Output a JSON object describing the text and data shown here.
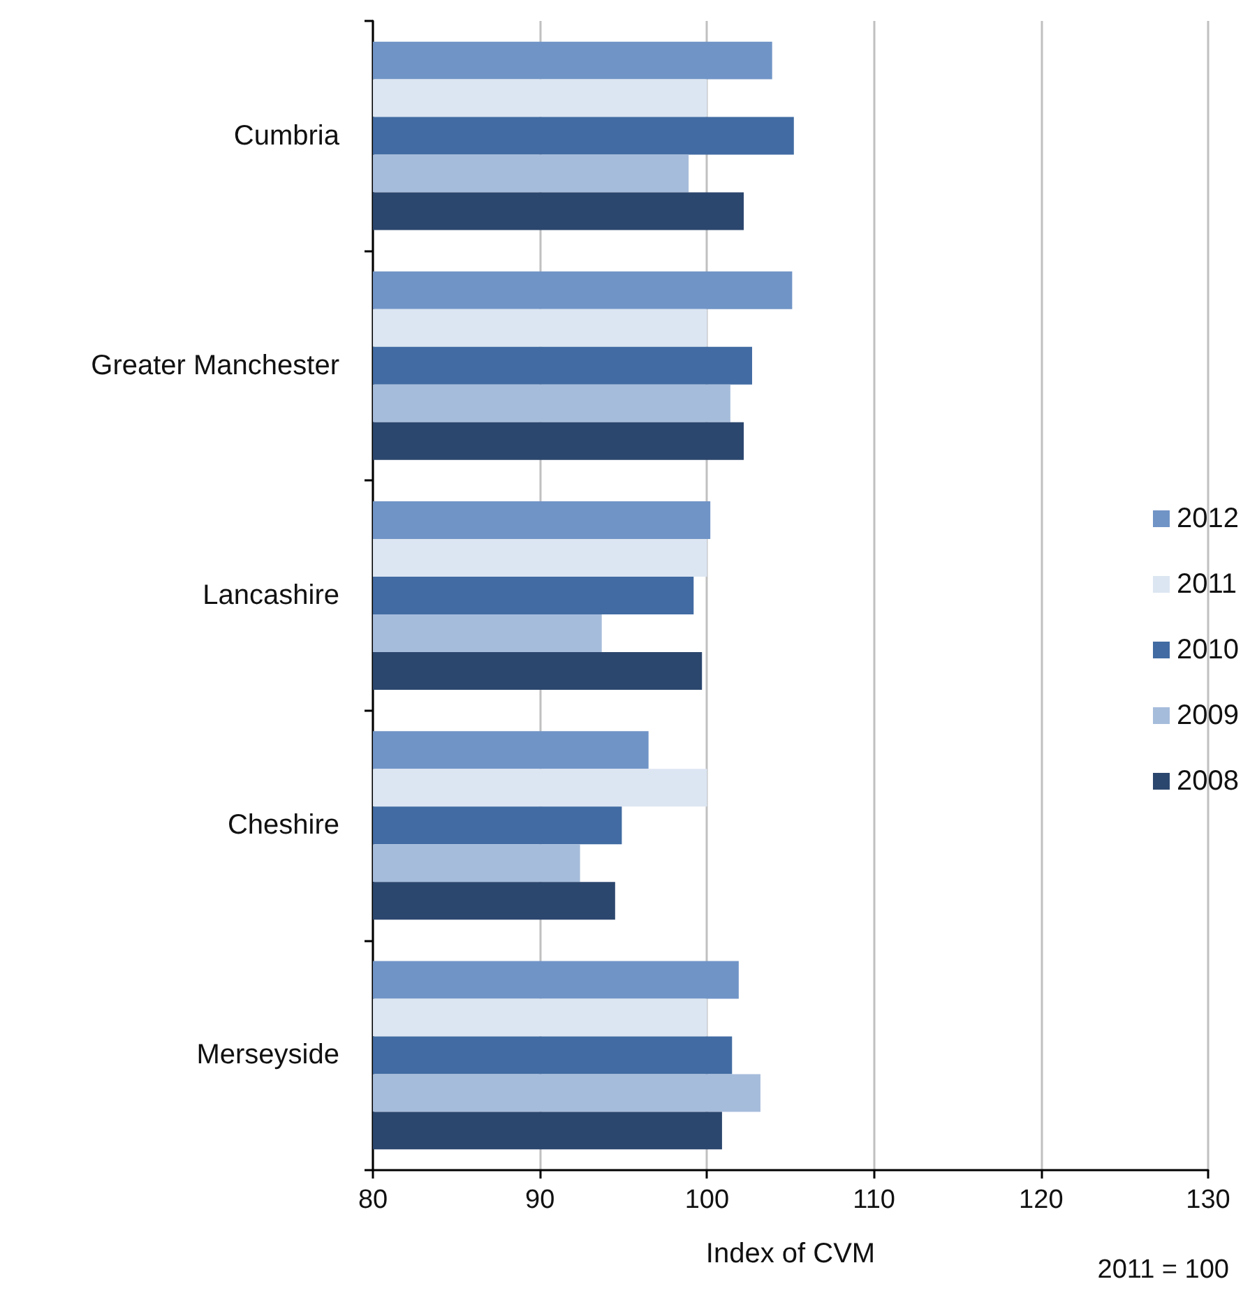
{
  "chart_data": {
    "type": "bar",
    "orientation": "horizontal",
    "categories": [
      "Cumbria",
      "Greater Manchester",
      "Lancashire",
      "Cheshire",
      "Merseyside"
    ],
    "series": [
      {
        "name": "2012",
        "color": "#7094c6",
        "values": [
          103.9,
          105.1,
          100.2,
          96.5,
          101.9
        ]
      },
      {
        "name": "2011",
        "color": "#dce6f2",
        "values": [
          100,
          100,
          100,
          100,
          100
        ]
      },
      {
        "name": "2010",
        "color": "#416ba2",
        "values": [
          105.2,
          102.7,
          99.2,
          94.9,
          101.5
        ]
      },
      {
        "name": "2009",
        "color": "#a6bcdb",
        "values": [
          98.9,
          101.4,
          93.7,
          92.4,
          103.2
        ]
      },
      {
        "name": "2008",
        "color": "#2c476e",
        "values": [
          102.2,
          102.2,
          99.7,
          94.5,
          100.9
        ]
      }
    ],
    "xlim": [
      80,
      130
    ],
    "xticks": [
      80,
      90,
      100,
      110,
      120,
      130
    ],
    "xlabel": "Index of CVM",
    "annotations": [
      "2011 = 100"
    ],
    "grid": "x",
    "legend": "right"
  }
}
